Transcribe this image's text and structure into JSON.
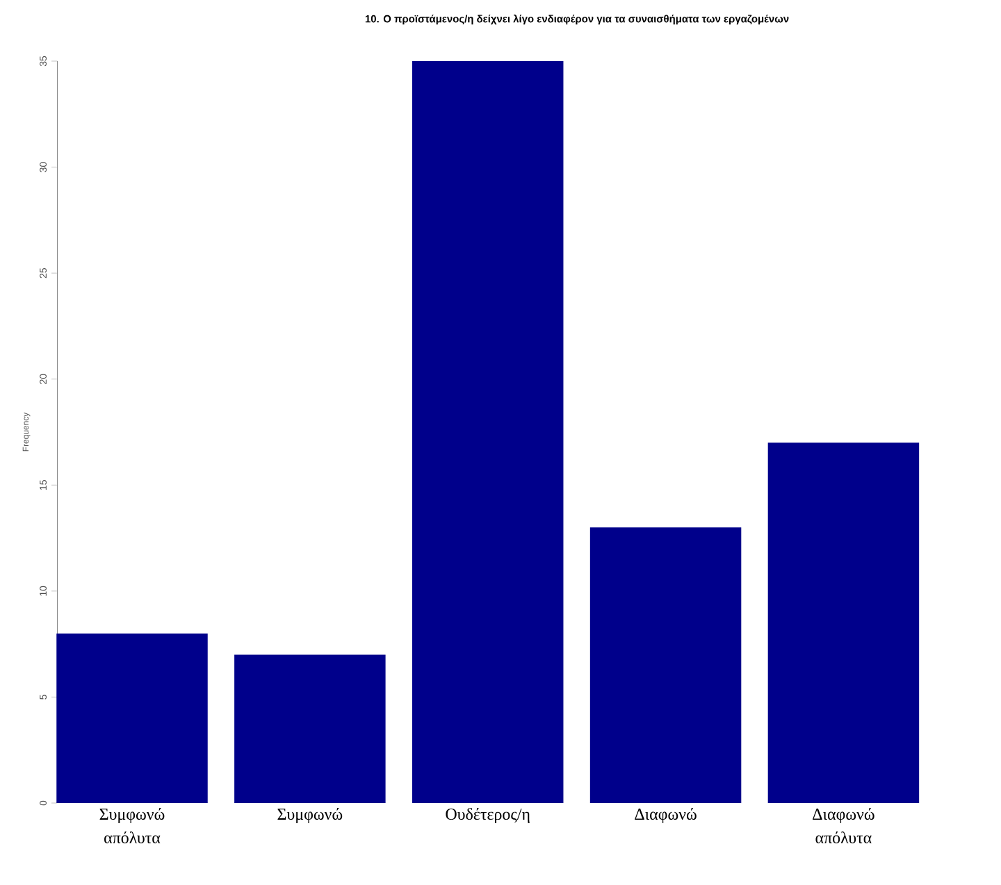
{
  "chart_data": {
    "type": "bar",
    "title": "10. Ο προϊστάμενος/η δείχνει λίγο ενδιαφέρον για τα συναισθήματα των εργαζομένων",
    "ylabel": "Frequency",
    "categories": [
      "Συμφωνώ απόλυτα",
      "Συμφωνώ",
      "Ουδέτερος/η",
      "Διαφωνώ",
      "Διαφωνώ απόλυτα"
    ],
    "values": [
      8,
      7,
      35,
      13,
      17
    ],
    "color": "#00008b",
    "ylim": [
      0,
      35
    ],
    "yticks": [
      0,
      5,
      10,
      15,
      20,
      25,
      30,
      35
    ],
    "grid": false
  }
}
